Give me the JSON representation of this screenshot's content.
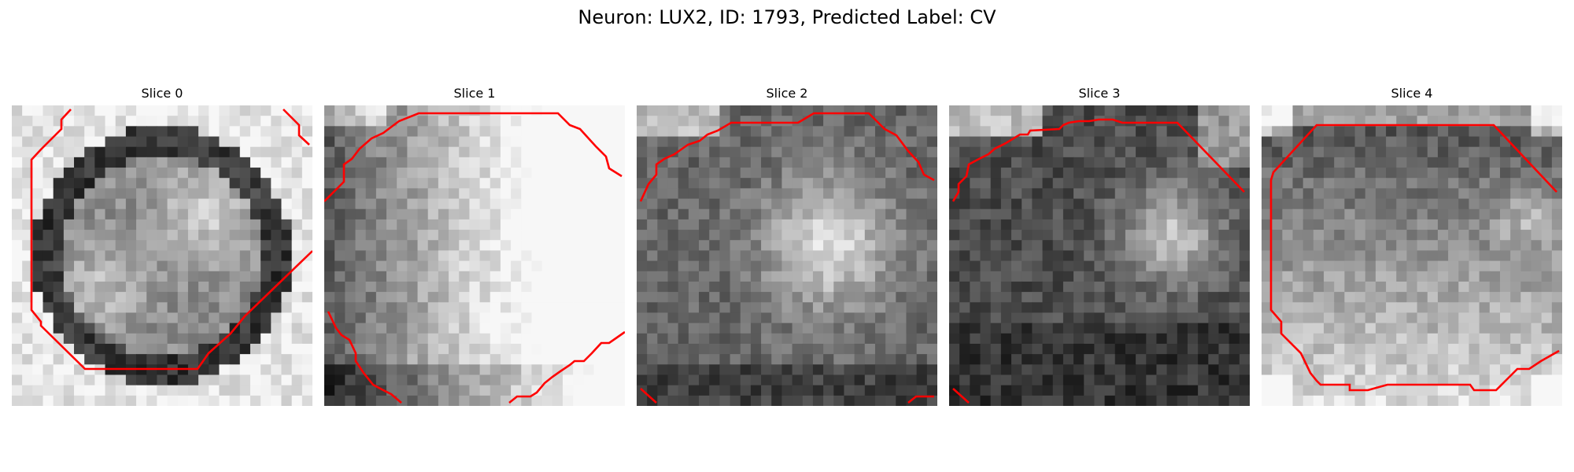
{
  "figure": {
    "title": "Neuron: LUX2, ID: 1793, Predicted Label: CV"
  },
  "panels": [
    {
      "title": "Slice 0"
    },
    {
      "title": "Slice 1"
    },
    {
      "title": "Slice 2"
    },
    {
      "title": "Slice 3"
    },
    {
      "title": "Slice 4"
    }
  ],
  "colors": {
    "contour": "#ff0000",
    "colormap": "gray"
  }
}
